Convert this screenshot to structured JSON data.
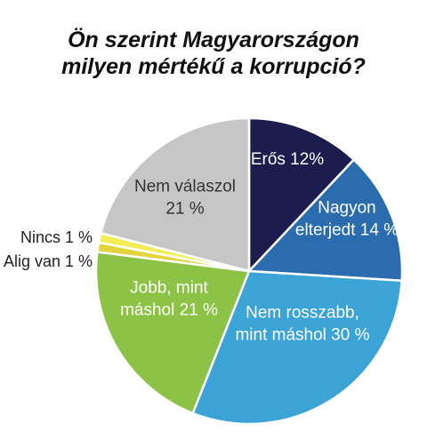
{
  "chart_data": {
    "type": "pie",
    "title_lines": [
      "Ön szerint Magyarországon",
      "milyen mértékű a korrupció?"
    ],
    "unit": "%",
    "slices": [
      {
        "label_lines": [
          "Erős 12%"
        ],
        "value": 12,
        "color": "#1c1d4e"
      },
      {
        "label_lines": [
          "Nagyon",
          "elterjedt 14 %"
        ],
        "value": 14,
        "color": "#2b6cae"
      },
      {
        "label_lines": [
          "Nem rosszabb,",
          "mint máshol 30 %"
        ],
        "value": 30,
        "color": "#3ba3d6"
      },
      {
        "label_lines": [
          "Jobb, mint",
          "máshol 21 %"
        ],
        "value": 21,
        "color": "#8cc245"
      },
      {
        "label_lines": [
          "Alig van 1 %"
        ],
        "value": 1,
        "color": "#e2d43a"
      },
      {
        "label_lines": [
          "Nincs 1 %"
        ],
        "value": 1,
        "color": "#f3ee55"
      },
      {
        "label_lines": [
          "Nem válaszol",
          "21 %"
        ],
        "value": 21,
        "color": "#c6c6c6"
      }
    ]
  }
}
